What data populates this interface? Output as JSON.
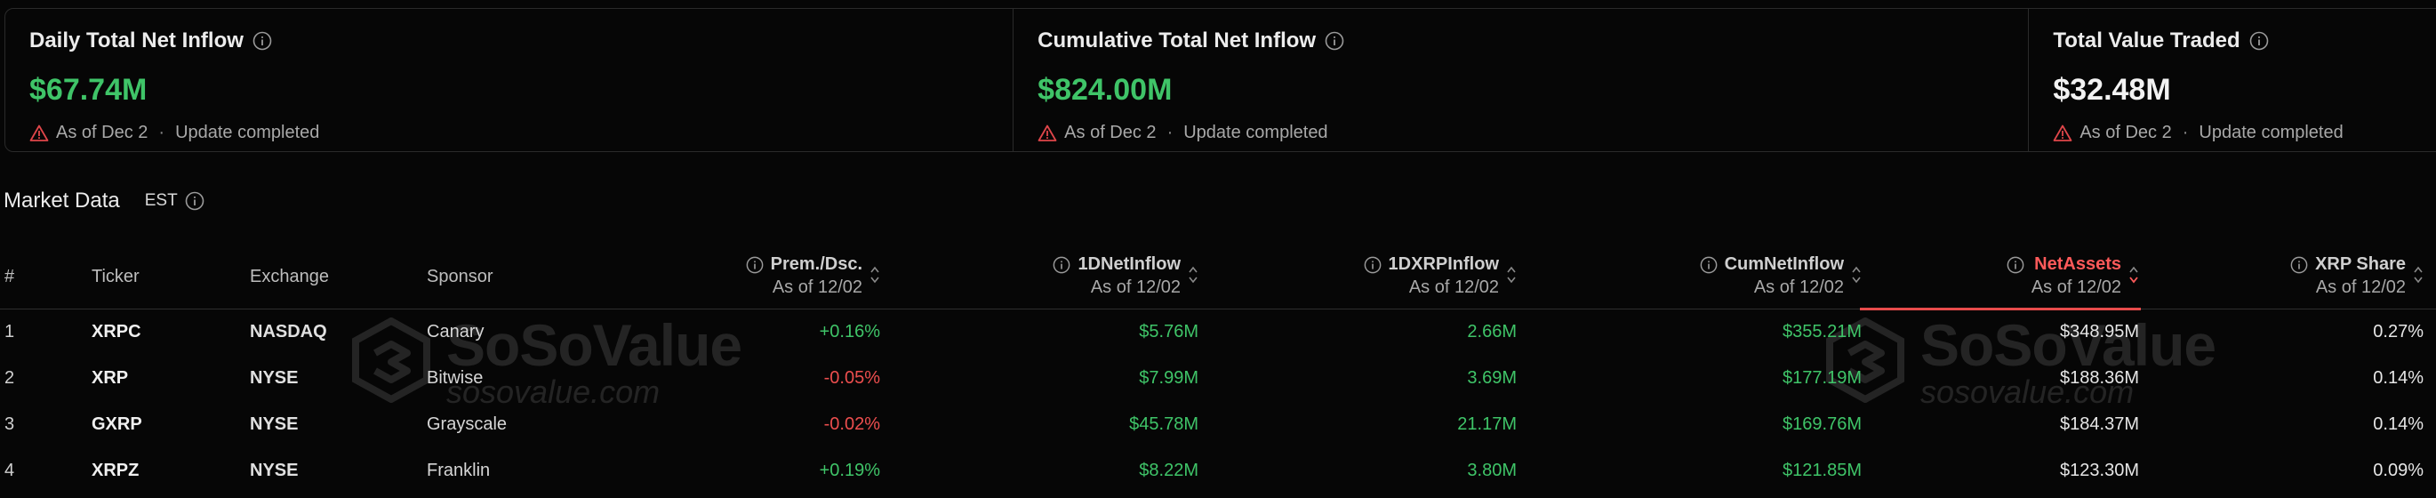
{
  "summary": {
    "daily": {
      "title": "Daily Total Net Inflow",
      "value": "$67.74M",
      "status_date": "As of Dec 2",
      "status_sep": "·",
      "status_text": "Update completed"
    },
    "cumulative": {
      "title": "Cumulative Total Net Inflow",
      "value": "$824.00M",
      "status_date": "As of Dec 2",
      "status_sep": "·",
      "status_text": "Update completed"
    },
    "traded": {
      "title": "Total Value Traded",
      "value": "$32.48M",
      "status_date": "As of Dec 2",
      "status_sep": "·",
      "status_text": "Update completed"
    }
  },
  "market": {
    "title": "Market Data",
    "timezone": "EST"
  },
  "table": {
    "headers": {
      "index": "#",
      "ticker": "Ticker",
      "exchange": "Exchange",
      "sponsor": "Sponsor",
      "prem": {
        "name": "Prem./Dsc.",
        "sub": "As of 12/02"
      },
      "netinflow": {
        "name": "1DNetInflow",
        "sub": "As of 12/02"
      },
      "xrpinflow": {
        "name": "1DXRPInflow",
        "sub": "As of 12/02"
      },
      "cumnet": {
        "name": "CumNetInflow",
        "sub": "As of 12/02"
      },
      "netassets": {
        "name": "NetAssets",
        "sub": "As of 12/02"
      },
      "share": {
        "name": "XRP Share",
        "sub": "As of 12/02"
      }
    },
    "rows": [
      {
        "index": "1",
        "ticker": "XRPC",
        "exchange": "NASDAQ",
        "sponsor": "Canary",
        "prem": "+0.16%",
        "prem_sign": "pos",
        "netinflow": "$5.76M",
        "xrpinflow": "2.66M",
        "cumnet": "$355.21M",
        "netassets": "$348.95M",
        "share": "0.27%"
      },
      {
        "index": "2",
        "ticker": "XRP",
        "exchange": "NYSE",
        "sponsor": "Bitwise",
        "prem": "-0.05%",
        "prem_sign": "neg",
        "netinflow": "$7.99M",
        "xrpinflow": "3.69M",
        "cumnet": "$177.19M",
        "netassets": "$188.36M",
        "share": "0.14%"
      },
      {
        "index": "3",
        "ticker": "GXRP",
        "exchange": "NYSE",
        "sponsor": "Grayscale",
        "prem": "-0.02%",
        "prem_sign": "neg",
        "netinflow": "$45.78M",
        "xrpinflow": "21.17M",
        "cumnet": "$169.76M",
        "netassets": "$184.37M",
        "share": "0.14%"
      },
      {
        "index": "4",
        "ticker": "XRPZ",
        "exchange": "NYSE",
        "sponsor": "Franklin",
        "prem": "+0.19%",
        "prem_sign": "pos",
        "netinflow": "$8.22M",
        "xrpinflow": "3.80M",
        "cumnet": "$121.85M",
        "netassets": "$123.30M",
        "share": "0.09%"
      }
    ]
  },
  "watermark": {
    "brand": "SoSoValue",
    "url": "sosovalue.com"
  },
  "icons": {
    "info": "info-icon",
    "warning": "warning-triangle-icon",
    "sort": "sort-icon",
    "logo": "sosovalue-logo-icon"
  },
  "colors": {
    "positive": "#3fc468",
    "negative": "#ec4e4e",
    "warning": "#e0464a",
    "active_sort": "#ff5a5a"
  }
}
